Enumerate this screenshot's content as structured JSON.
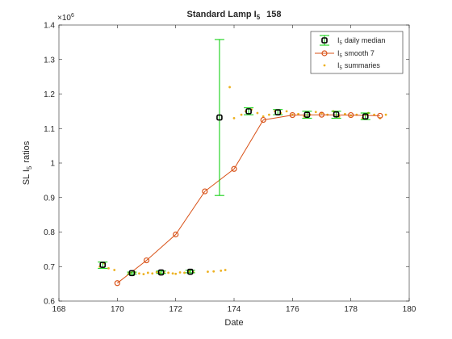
{
  "chart_data": {
    "type": "line",
    "title": "Standard Lamp I",
    "title_sub": "5",
    "title_suffix": "158",
    "xlabel": "Date",
    "ylabel": "SL I",
    "ylabel_sub": "5",
    "ylabel_suffix": "ratios",
    "y_exponent": "×10",
    "y_exponent_power": "6",
    "xlim": [
      168,
      180
    ],
    "ylim": [
      0.6,
      1.4
    ],
    "xticks": [
      "168",
      "170",
      "172",
      "174",
      "176",
      "178",
      "180"
    ],
    "yticks": [
      "0.6",
      "0.7",
      "0.8",
      "0.9",
      "1",
      "1.1",
      "1.2",
      "1.3",
      "1.4"
    ],
    "x_tick_values": [
      168,
      170,
      172,
      174,
      176,
      178,
      180
    ],
    "y_tick_values": [
      0.6,
      0.7,
      0.8,
      0.9,
      1.0,
      1.1,
      1.2,
      1.3,
      1.4
    ],
    "grid": false,
    "legend_position": "top-right",
    "colors": {
      "median_marker": "#000000",
      "median_errorbar": "#00cc00",
      "smooth_line": "#d95319",
      "summaries": "#edb120"
    },
    "series": [
      {
        "name": "I",
        "name_sub": "5",
        "name_suffix": "daily median",
        "kind": "errorbar",
        "points": [
          {
            "x": 169.5,
            "y": 0.705,
            "lo": 0.695,
            "hi": 0.713
          },
          {
            "x": 170.5,
            "y": 0.681,
            "lo": 0.678,
            "hi": 0.684
          },
          {
            "x": 171.5,
            "y": 0.683,
            "lo": 0.68,
            "hi": 0.687
          },
          {
            "x": 172.5,
            "y": 0.685,
            "lo": 0.682,
            "hi": 0.689
          },
          {
            "x": 173.5,
            "y": 1.132,
            "lo": 0.906,
            "hi": 1.358
          },
          {
            "x": 174.5,
            "y": 1.15,
            "lo": 1.14,
            "hi": 1.16
          },
          {
            "x": 175.5,
            "y": 1.147,
            "lo": 1.14,
            "hi": 1.155
          },
          {
            "x": 176.5,
            "y": 1.14,
            "lo": 1.13,
            "hi": 1.15
          },
          {
            "x": 177.5,
            "y": 1.141,
            "lo": 1.13,
            "hi": 1.15
          },
          {
            "x": 178.5,
            "y": 1.135,
            "lo": 1.126,
            "hi": 1.145
          }
        ]
      },
      {
        "name": "I",
        "name_sub": "5",
        "name_suffix": "smooth 7",
        "kind": "line",
        "x": [
          170,
          171,
          172,
          173,
          174,
          175,
          176,
          177,
          178,
          179
        ],
        "y": [
          0.652,
          0.718,
          0.793,
          0.918,
          0.983,
          1.125,
          1.139,
          1.14,
          1.139,
          1.137
        ]
      },
      {
        "name": "I",
        "name_sub": "5",
        "name_suffix": "summaries",
        "kind": "scatter",
        "x": [
          169.4,
          169.55,
          169.7,
          169.9,
          170.4,
          170.6,
          170.75,
          170.9,
          171.05,
          171.2,
          171.35,
          171.45,
          171.6,
          171.75,
          171.9,
          172.0,
          172.15,
          172.3,
          172.45,
          172.6,
          173.1,
          173.3,
          173.55,
          173.7,
          173.85,
          174.0,
          174.25,
          174.4,
          174.6,
          174.8,
          175.0,
          175.2,
          175.4,
          175.6,
          175.8,
          176.0,
          176.2,
          176.4,
          176.6,
          176.8,
          177.0,
          177.2,
          177.4,
          177.6,
          177.8,
          178.0,
          178.2,
          178.4,
          178.6,
          178.8,
          179.0,
          179.2
        ],
        "y": [
          0.7,
          0.71,
          0.695,
          0.69,
          0.68,
          0.683,
          0.68,
          0.678,
          0.682,
          0.68,
          0.684,
          0.681,
          0.683,
          0.682,
          0.68,
          0.679,
          0.683,
          0.682,
          0.686,
          0.684,
          0.685,
          0.686,
          0.688,
          0.69,
          1.22,
          1.13,
          1.14,
          1.15,
          1.155,
          1.145,
          1.135,
          1.14,
          1.15,
          1.145,
          1.15,
          1.14,
          1.142,
          1.135,
          1.14,
          1.148,
          1.145,
          1.14,
          1.15,
          1.135,
          1.142,
          1.138,
          1.14,
          1.13,
          1.145,
          1.14,
          1.13,
          1.14
        ]
      }
    ]
  }
}
